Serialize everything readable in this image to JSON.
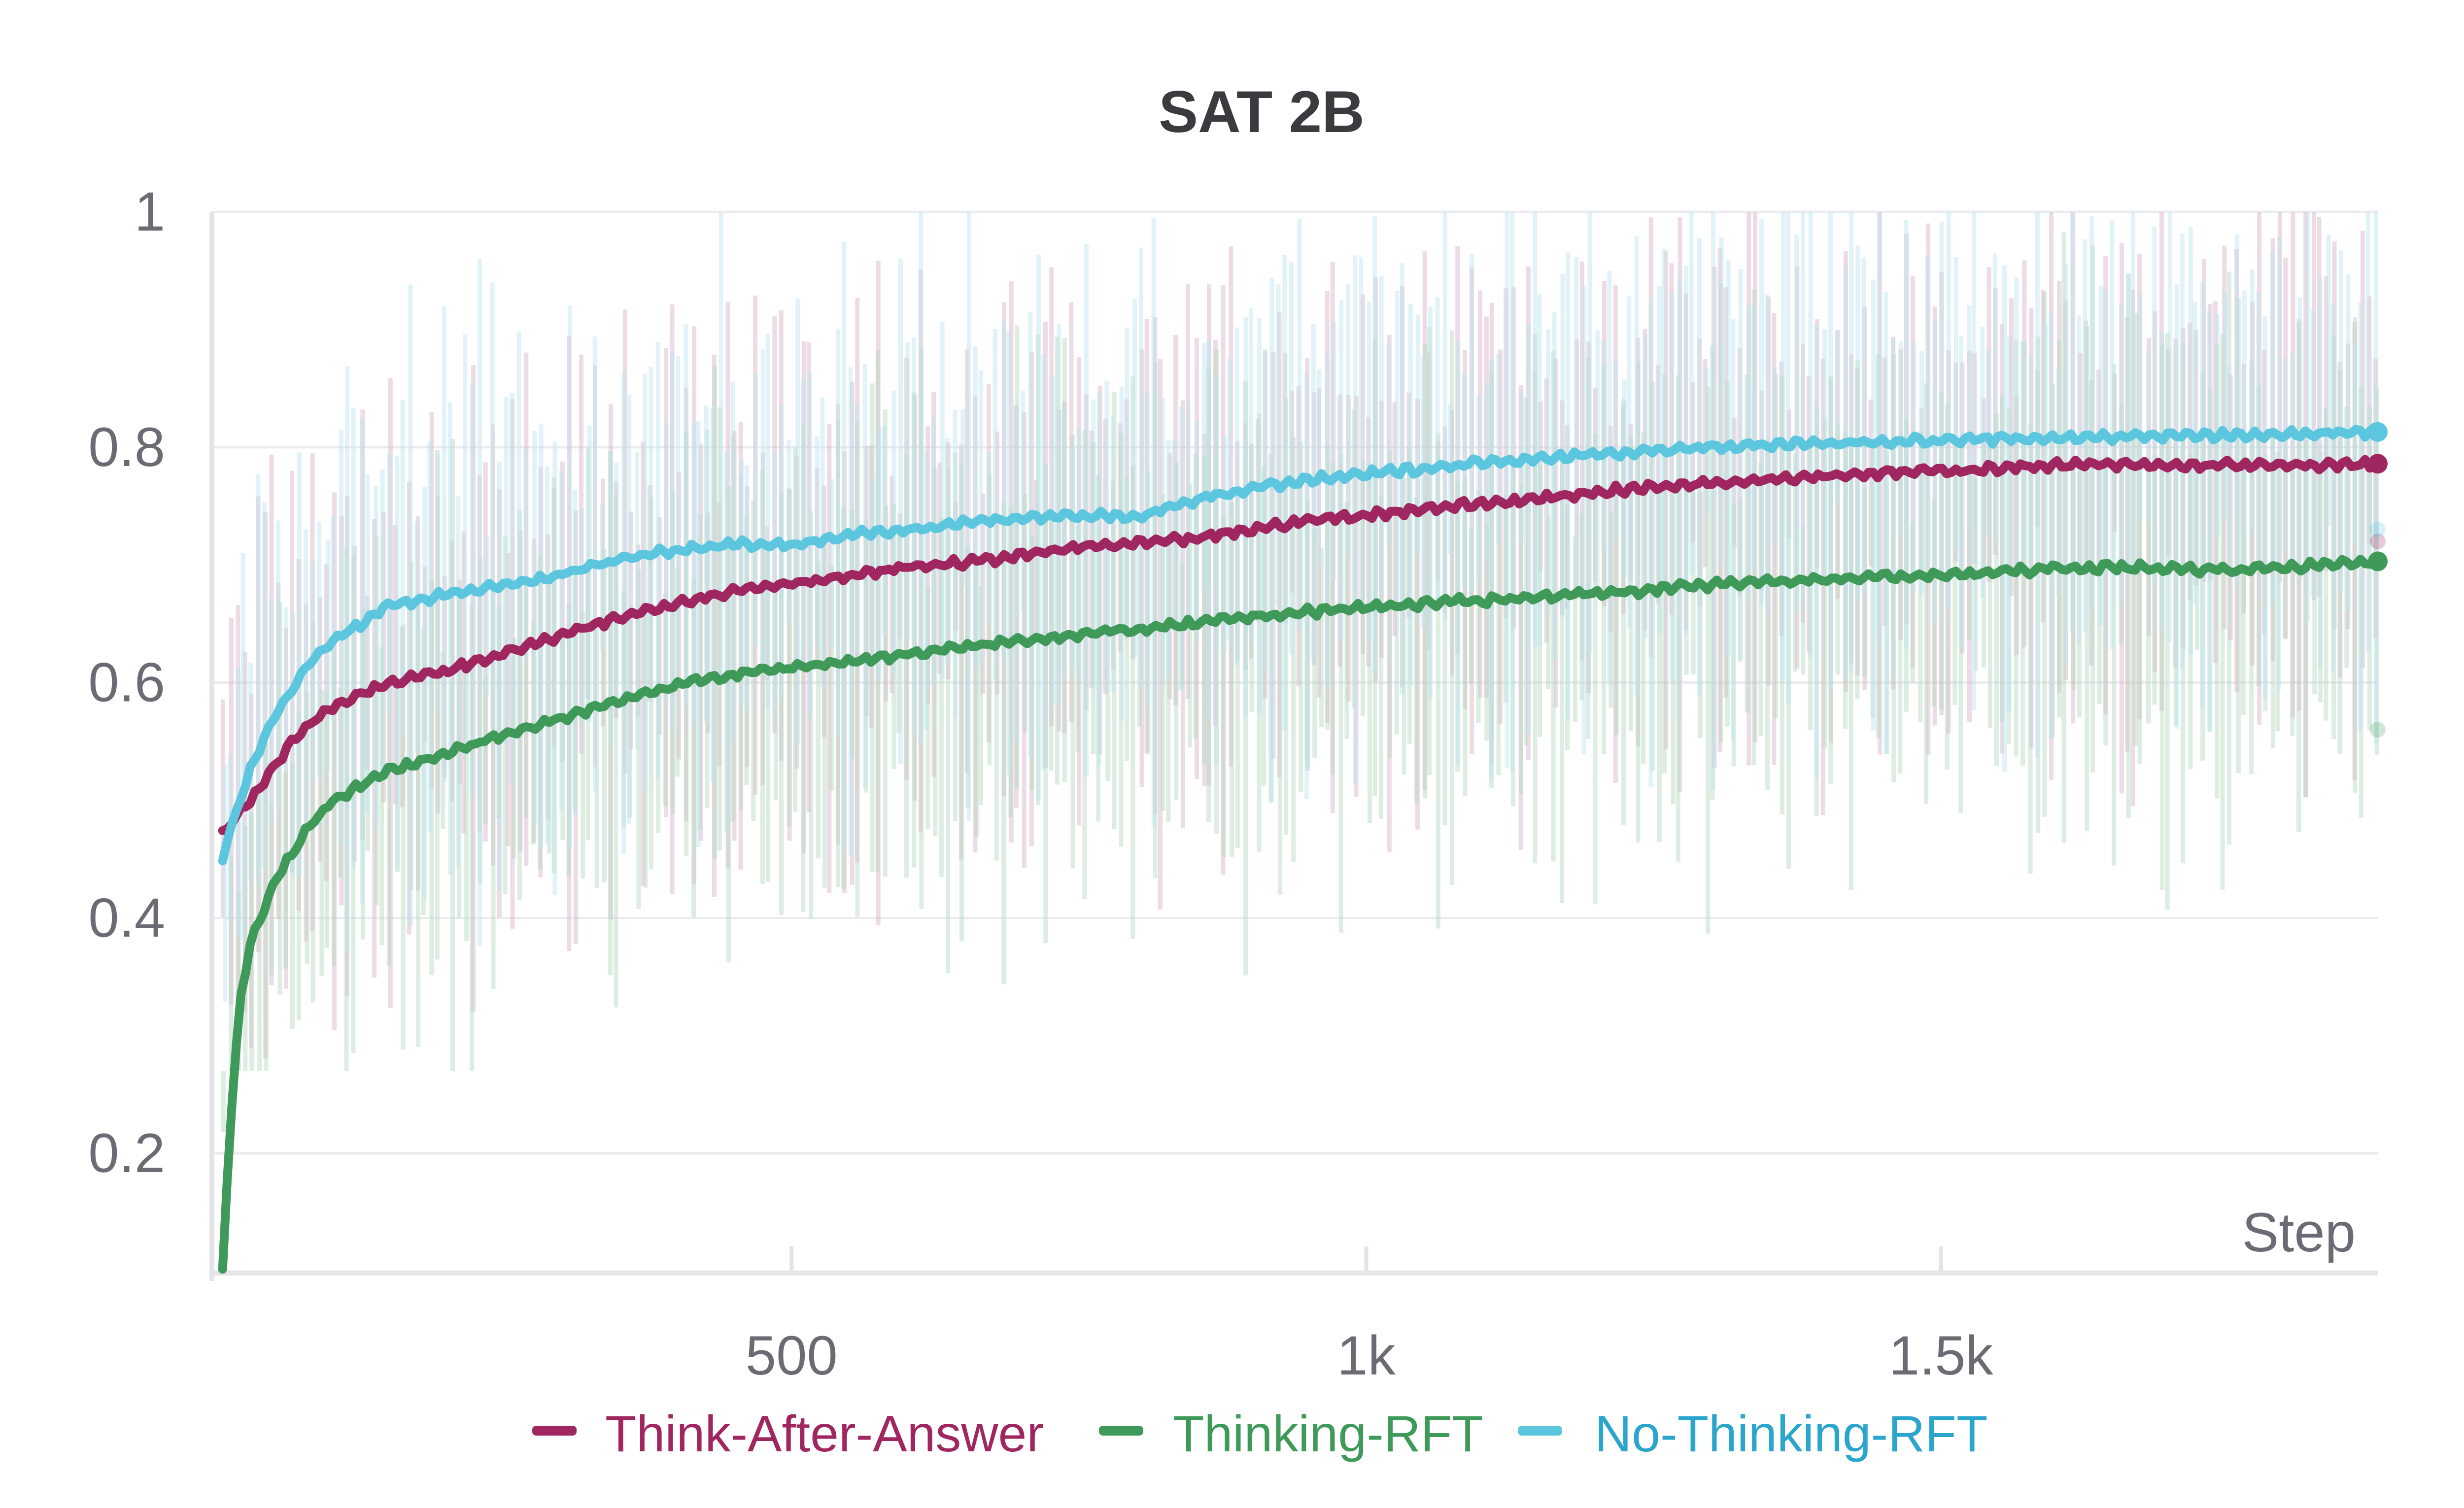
{
  "chart_data": {
    "type": "line",
    "title": "SAT 2B",
    "xlabel": "Step",
    "ylabel": "",
    "xlim": [
      0,
      1880
    ],
    "ylim": [
      0.1,
      1.0
    ],
    "x_ticks": [
      {
        "value": 500,
        "label": "500"
      },
      {
        "value": 1000,
        "label": "1k"
      },
      {
        "value": 1500,
        "label": "1.5k"
      }
    ],
    "y_ticks": [
      {
        "value": 0.2,
        "label": "0.2"
      },
      {
        "value": 0.4,
        "label": "0.4"
      },
      {
        "value": 0.6,
        "label": "0.6"
      },
      {
        "value": 0.8,
        "label": "0.8"
      },
      {
        "value": 1.0,
        "label": "1"
      }
    ],
    "grid": true,
    "legend_position": "bottom",
    "x": [
      5,
      10,
      20,
      30,
      50,
      75,
      100,
      150,
      200,
      250,
      300,
      350,
      400,
      450,
      500,
      550,
      600,
      650,
      700,
      750,
      800,
      850,
      900,
      950,
      1000,
      1050,
      1100,
      1150,
      1200,
      1250,
      1300,
      1350,
      1400,
      1450,
      1500,
      1550,
      1600,
      1650,
      1700,
      1750,
      1800,
      1850,
      1880
    ],
    "series": [
      {
        "name": "Think-After-Answer",
        "color": "#a0265f",
        "values": [
          0.47,
          0.48,
          0.49,
          0.5,
          0.53,
          0.56,
          0.58,
          0.6,
          0.61,
          0.625,
          0.64,
          0.655,
          0.668,
          0.678,
          0.685,
          0.69,
          0.698,
          0.702,
          0.708,
          0.715,
          0.718,
          0.722,
          0.73,
          0.738,
          0.742,
          0.748,
          0.752,
          0.756,
          0.762,
          0.766,
          0.77,
          0.773,
          0.776,
          0.778,
          0.78,
          0.782,
          0.785,
          0.785,
          0.784,
          0.785,
          0.784,
          0.785,
          0.786
        ],
        "raw_endpoint": 0.72
      },
      {
        "name": "Thinking-RFT",
        "color": "#3f9a5a",
        "values": [
          0.1,
          0.2,
          0.33,
          0.38,
          0.43,
          0.47,
          0.5,
          0.525,
          0.54,
          0.555,
          0.57,
          0.585,
          0.598,
          0.607,
          0.613,
          0.618,
          0.624,
          0.63,
          0.636,
          0.641,
          0.645,
          0.65,
          0.656,
          0.66,
          0.664,
          0.667,
          0.67,
          0.673,
          0.676,
          0.679,
          0.683,
          0.686,
          0.688,
          0.69,
          0.691,
          0.694,
          0.697,
          0.698,
          0.697,
          0.696,
          0.698,
          0.701,
          0.703
        ],
        "raw_endpoint": 0.56
      },
      {
        "name": "No-Thinking-RFT",
        "color": "#5bc6de",
        "values": [
          0.45,
          0.47,
          0.5,
          0.53,
          0.57,
          0.61,
          0.635,
          0.665,
          0.675,
          0.682,
          0.692,
          0.705,
          0.713,
          0.718,
          0.717,
          0.725,
          0.73,
          0.736,
          0.74,
          0.742,
          0.74,
          0.755,
          0.765,
          0.772,
          0.777,
          0.782,
          0.787,
          0.791,
          0.794,
          0.797,
          0.8,
          0.802,
          0.803,
          0.805,
          0.806,
          0.807,
          0.808,
          0.809,
          0.81,
          0.81,
          0.811,
          0.812,
          0.813
        ],
        "raw_endpoint": 0.73
      }
    ]
  }
}
